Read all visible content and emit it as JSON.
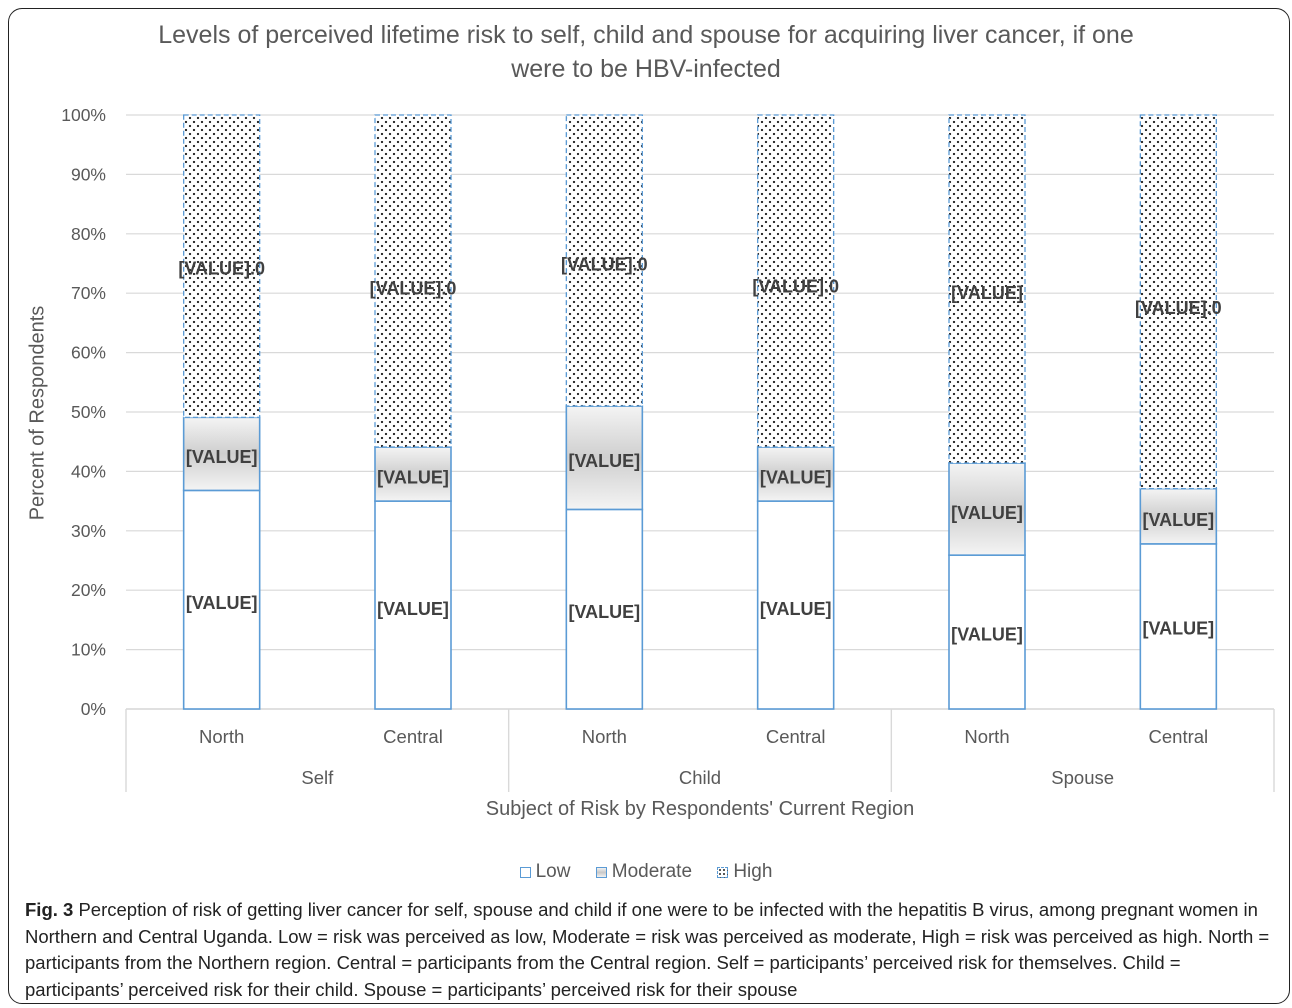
{
  "chart_data": {
    "type": "bar",
    "stacked": true,
    "title": "Levels of perceived lifetime risk to self, child and spouse for acquiring liver cancer, if one were to be HBV-infected",
    "ylabel": "Percent of Respondents",
    "xlabel": "Subject of Risk by Respondents' Current Region",
    "ylim": [
      0,
      100
    ],
    "y_ticks": [
      "0%",
      "10%",
      "20%",
      "30%",
      "40%",
      "50%",
      "60%",
      "70%",
      "80%",
      "90%",
      "100%"
    ],
    "groups": [
      "Self",
      "Child",
      "Spouse"
    ],
    "categories": [
      "North",
      "Central",
      "North",
      "Central",
      "North",
      "Central"
    ],
    "category_group": [
      0,
      0,
      1,
      1,
      2,
      2
    ],
    "series": [
      {
        "name": "Low",
        "values": [
          36.8,
          35.0,
          33.6,
          35.0,
          25.9,
          27.8
        ],
        "labels": [
          "[VALUE]",
          "[VALUE]",
          "[VALUE]",
          "[VALUE]",
          "[VALUE]",
          "[VALUE]"
        ],
        "label_y": [
          18.0,
          17.0,
          16.5,
          17.0,
          12.7,
          13.7
        ]
      },
      {
        "name": "Moderate",
        "values": [
          12.3,
          9.1,
          17.4,
          9.1,
          15.5,
          9.3
        ],
        "labels": [
          "[VALUE]",
          "[VALUE]",
          "[VALUE]",
          "[VALUE]",
          "[VALUE]",
          "[VALUE]"
        ],
        "label_y": [
          42.6,
          39.1,
          41.9,
          39.1,
          33.2,
          32.0
        ]
      },
      {
        "name": "High",
        "values": [
          50.9,
          55.9,
          49.0,
          55.9,
          58.6,
          62.9
        ],
        "labels": [
          "[VALUE].0",
          "[VALUE].0",
          "[VALUE].0",
          "[VALUE].0",
          "[VALUE]",
          "[VALUE].0"
        ],
        "label_y": [
          74.3,
          71.0,
          75.0,
          71.3,
          70.2,
          67.7
        ]
      }
    ],
    "grid": true,
    "legend_position": "bottom",
    "colors": {
      "low_fill": "#ffffff",
      "border": "#5b9bd5",
      "moderate_fill": "#d9d9d9",
      "high_dots": "#222222",
      "grid": "#d9d9d9",
      "text": "#595959",
      "label": "#404040"
    }
  },
  "caption": {
    "prefix": "Fig. 3",
    "text": " Perception of risk of getting liver cancer for self, spouse and child if one were to be infected with the hepatitis B virus, among pregnant women in Northern and Central Uganda. Low = risk was perceived as low, Moderate = risk was perceived as moderate, High = risk was perceived as high. North = participants from the Northern region. Central = participants from the Central region. Self = participants’ perceived risk for themselves. Child = participants’ perceived risk for their child. Spouse = participants’ perceived risk for their spouse"
  }
}
